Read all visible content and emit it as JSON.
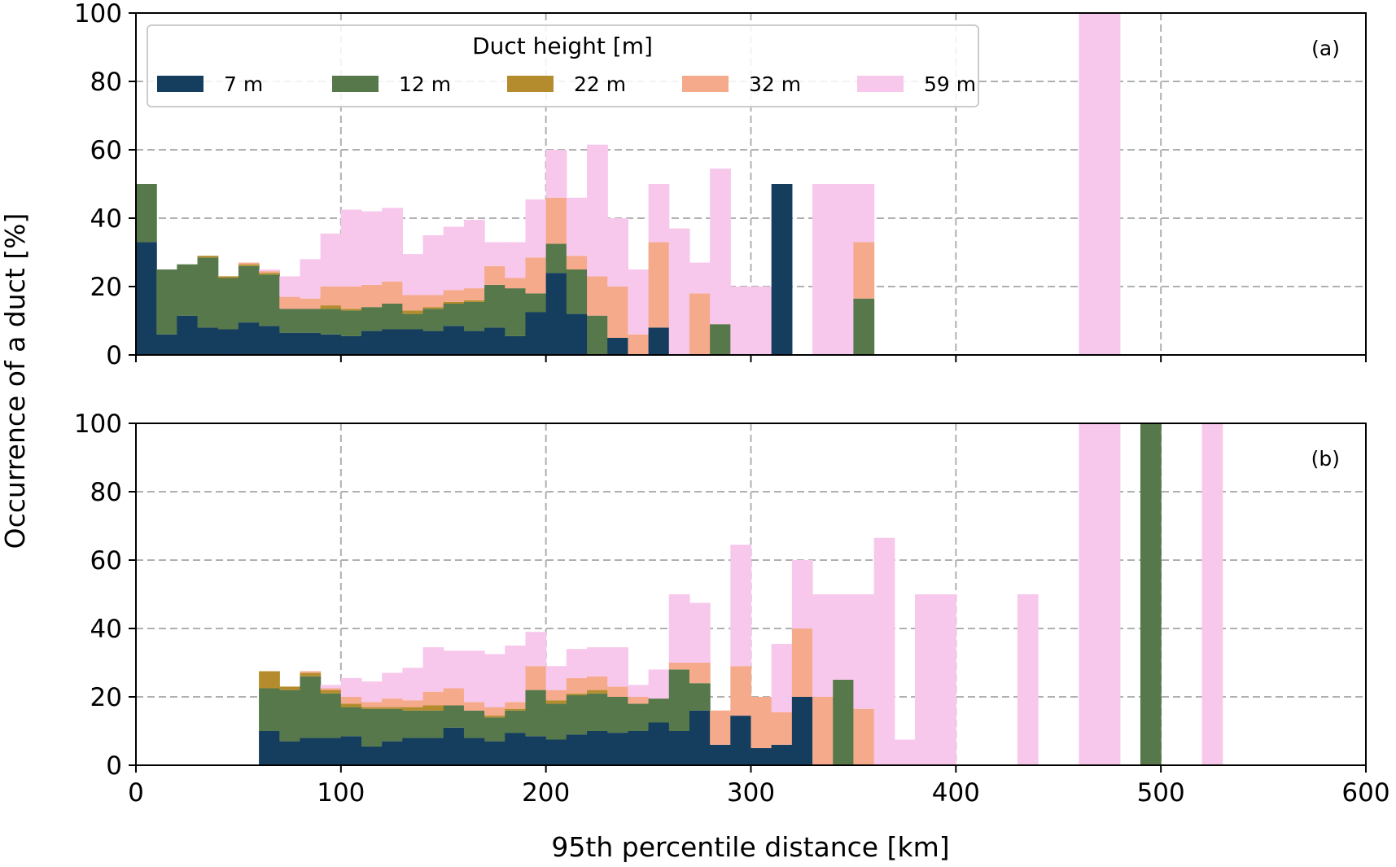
{
  "chart_data": {
    "type": "bar",
    "stacked": true,
    "xlabel": "95th percentile distance [km]",
    "ylabel": "Occurrence of a duct [%]",
    "xlim": [
      0,
      600
    ],
    "ylim": [
      0,
      100
    ],
    "xticks": [
      0,
      100,
      200,
      300,
      400,
      500,
      600
    ],
    "yticks": [
      0,
      20,
      40,
      60,
      80,
      100
    ],
    "bin_width": 10,
    "grid": true,
    "legend": {
      "title": "Duct height [m]",
      "placement": "upper-left, inside panel (a)",
      "entries": [
        {
          "name": "7 m",
          "color": "#143d5e"
        },
        {
          "name": "12 m",
          "color": "#56784a"
        },
        {
          "name": "22 m",
          "color": "#b48c2d"
        },
        {
          "name": "32 m",
          "color": "#f6aa8c"
        },
        {
          "name": "59 m",
          "color": "#f7c8ec"
        }
      ]
    },
    "panels": [
      {
        "label": "(a)",
        "bins": [
          {
            "x": 0,
            "values": [
              33,
              17,
              0,
              0,
              0
            ]
          },
          {
            "x": 10,
            "values": [
              6,
              19,
              0,
              0,
              0
            ]
          },
          {
            "x": 20,
            "values": [
              11.5,
              15,
              0,
              0,
              0
            ]
          },
          {
            "x": 30,
            "values": [
              8,
              20.5,
              0.5,
              0,
              0
            ]
          },
          {
            "x": 40,
            "values": [
              7.5,
              15,
              0.5,
              0,
              0
            ]
          },
          {
            "x": 50,
            "values": [
              9.5,
              16.5,
              0.5,
              0.5,
              0
            ]
          },
          {
            "x": 60,
            "values": [
              8.5,
              15,
              0.5,
              0.5,
              0.5
            ]
          },
          {
            "x": 70,
            "values": [
              6.5,
              7,
              0,
              3.5,
              6
            ]
          },
          {
            "x": 80,
            "values": [
              6.5,
              7,
              0,
              3,
              11.5
            ]
          },
          {
            "x": 90,
            "values": [
              6,
              7.5,
              1,
              5.5,
              15.5
            ]
          },
          {
            "x": 100,
            "values": [
              5.5,
              7.5,
              0.5,
              6.5,
              22.5
            ]
          },
          {
            "x": 110,
            "values": [
              7,
              7,
              0,
              6.5,
              21.5
            ]
          },
          {
            "x": 120,
            "values": [
              7.5,
              7.5,
              0,
              6.5,
              21.5
            ]
          },
          {
            "x": 130,
            "values": [
              7.5,
              4.5,
              1,
              4.5,
              12
            ]
          },
          {
            "x": 140,
            "values": [
              7,
              6.5,
              0.5,
              3.5,
              17.5
            ]
          },
          {
            "x": 150,
            "values": [
              8.5,
              6.5,
              0.5,
              3.5,
              18.5
            ]
          },
          {
            "x": 160,
            "values": [
              7,
              8.5,
              0.5,
              3.5,
              20
            ]
          },
          {
            "x": 170,
            "values": [
              8,
              12.5,
              0,
              5.5,
              7
            ]
          },
          {
            "x": 180,
            "values": [
              5.5,
              14,
              0,
              3,
              10.5
            ]
          },
          {
            "x": 190,
            "values": [
              12.5,
              5.5,
              0,
              10.5,
              17
            ]
          },
          {
            "x": 200,
            "values": [
              24,
              8.5,
              0,
              13.5,
              14
            ]
          },
          {
            "x": 210,
            "values": [
              12,
              13,
              0,
              4,
              17
            ]
          },
          {
            "x": 220,
            "values": [
              0,
              11.5,
              0,
              11.5,
              38.5
            ]
          },
          {
            "x": 230,
            "values": [
              5,
              0,
              0,
              15,
              20
            ]
          },
          {
            "x": 240,
            "values": [
              0,
              0,
              0,
              6,
              19
            ]
          },
          {
            "x": 250,
            "values": [
              8,
              0,
              0,
              25,
              17
            ]
          },
          {
            "x": 260,
            "values": [
              0,
              0,
              0,
              0,
              37
            ]
          },
          {
            "x": 270,
            "values": [
              0,
              0,
              0,
              18,
              9
            ]
          },
          {
            "x": 280,
            "values": [
              0,
              9,
              0,
              0,
              45.5
            ]
          },
          {
            "x": 290,
            "values": [
              0,
              0,
              0,
              0,
              20
            ]
          },
          {
            "x": 300,
            "values": [
              0,
              0,
              0,
              0,
              20
            ]
          },
          {
            "x": 310,
            "values": [
              50,
              0,
              0,
              0,
              0
            ]
          },
          {
            "x": 330,
            "values": [
              0,
              0,
              0,
              0,
              50
            ]
          },
          {
            "x": 340,
            "values": [
              0,
              0,
              0,
              0,
              50
            ]
          },
          {
            "x": 350,
            "values": [
              0,
              16.5,
              0,
              16.5,
              17
            ]
          },
          {
            "x": 460,
            "values": [
              0,
              0,
              0,
              0,
              100
            ]
          },
          {
            "x": 470,
            "values": [
              0,
              0,
              0,
              0,
              100
            ]
          }
        ]
      },
      {
        "label": "(b)",
        "bins": [
          {
            "x": 60,
            "values": [
              10,
              12.5,
              5,
              0,
              0
            ]
          },
          {
            "x": 70,
            "values": [
              7,
              15,
              1,
              0,
              0
            ]
          },
          {
            "x": 80,
            "values": [
              8,
              18,
              1,
              0.5,
              0
            ]
          },
          {
            "x": 90,
            "values": [
              8,
              13,
              1,
              0.5,
              1
            ]
          },
          {
            "x": 100,
            "values": [
              8.5,
              8.5,
              1,
              2,
              5.5
            ]
          },
          {
            "x": 110,
            "values": [
              5.5,
              11,
              0.5,
              1.5,
              6
            ]
          },
          {
            "x": 120,
            "values": [
              7,
              9.5,
              0.5,
              2.5,
              7.5
            ]
          },
          {
            "x": 130,
            "values": [
              8,
              8,
              1,
              2,
              9.5
            ]
          },
          {
            "x": 140,
            "values": [
              8,
              8,
              1.5,
              4,
              13
            ]
          },
          {
            "x": 150,
            "values": [
              11,
              6.5,
              0,
              5,
              11
            ]
          },
          {
            "x": 160,
            "values": [
              8,
              8,
              0,
              2.5,
              15
            ]
          },
          {
            "x": 170,
            "values": [
              7,
              7,
              0.5,
              2.5,
              15.5
            ]
          },
          {
            "x": 180,
            "values": [
              9.5,
              6.5,
              0.5,
              2,
              16.5
            ]
          },
          {
            "x": 190,
            "values": [
              8.5,
              13.5,
              0,
              7,
              10
            ]
          },
          {
            "x": 200,
            "values": [
              7.5,
              10.5,
              1,
              3,
              7
            ]
          },
          {
            "x": 210,
            "values": [
              9,
              11.5,
              0.5,
              4.5,
              8.5
            ]
          },
          {
            "x": 220,
            "values": [
              10,
              11,
              1,
              4,
              8.5
            ]
          },
          {
            "x": 230,
            "values": [
              9.5,
              10.5,
              0,
              3,
              11.5
            ]
          },
          {
            "x": 240,
            "values": [
              10,
              8,
              0,
              2,
              3.5
            ]
          },
          {
            "x": 250,
            "values": [
              12.5,
              7,
              0,
              0,
              8.5
            ]
          },
          {
            "x": 260,
            "values": [
              10,
              18,
              0,
              2,
              20
            ]
          },
          {
            "x": 270,
            "values": [
              16,
              8,
              0,
              6,
              17.5
            ]
          },
          {
            "x": 280,
            "values": [
              6,
              0,
              0,
              10,
              0
            ]
          },
          {
            "x": 290,
            "values": [
              14.5,
              0,
              0,
              14.5,
              35.5
            ]
          },
          {
            "x": 300,
            "values": [
              5,
              0,
              0,
              15,
              0
            ]
          },
          {
            "x": 310,
            "values": [
              6,
              0,
              0,
              9.5,
              20
            ]
          },
          {
            "x": 320,
            "values": [
              20,
              0,
              0,
              20,
              20
            ]
          },
          {
            "x": 330,
            "values": [
              0,
              0,
              0,
              20,
              30
            ]
          },
          {
            "x": 340,
            "values": [
              0,
              25,
              0,
              0,
              25
            ]
          },
          {
            "x": 350,
            "values": [
              0,
              0,
              0,
              16.5,
              33.5
            ]
          },
          {
            "x": 360,
            "values": [
              0,
              0,
              0,
              0,
              66.5
            ]
          },
          {
            "x": 370,
            "values": [
              0,
              0,
              0,
              0,
              7.5
            ]
          },
          {
            "x": 380,
            "values": [
              0,
              0,
              0,
              0,
              50
            ]
          },
          {
            "x": 390,
            "values": [
              0,
              0,
              0,
              0,
              50
            ]
          },
          {
            "x": 430,
            "values": [
              0,
              0,
              0,
              0,
              50
            ]
          },
          {
            "x": 460,
            "values": [
              0,
              0,
              0,
              0,
              100
            ]
          },
          {
            "x": 470,
            "values": [
              0,
              0,
              0,
              0,
              100
            ]
          },
          {
            "x": 490,
            "values": [
              0,
              100,
              0,
              0,
              0
            ]
          },
          {
            "x": 520,
            "values": [
              0,
              0,
              0,
              0,
              100
            ]
          }
        ]
      }
    ]
  }
}
